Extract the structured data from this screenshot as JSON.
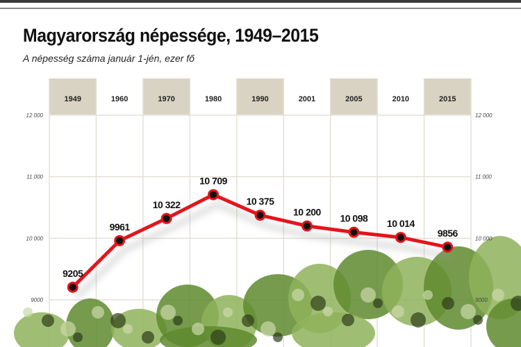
{
  "chart_data": {
    "type": "line",
    "title": "Magyarország népessége, 1949–2015",
    "subtitle": "A népesség száma január 1-jén, ezer fő",
    "categories": [
      "1949",
      "1960",
      "1970",
      "1980",
      "1990",
      "2001",
      "2005",
      "2010",
      "2015"
    ],
    "values": [
      9205,
      9961,
      10322,
      10709,
      10375,
      10200,
      10098,
      10014,
      9856
    ],
    "value_labels": [
      "9205",
      "9961",
      "10 322",
      "10 709",
      "10 375",
      "10 200",
      "10 098",
      "10 014",
      "9856"
    ],
    "yticks": [
      9000,
      10000,
      11000,
      12000
    ],
    "ytick_labels": [
      "9000",
      "10 000",
      "11 000",
      "12 000"
    ],
    "ylim": [
      9000,
      12000
    ],
    "grid": true,
    "colors": {
      "line": "#e3151b",
      "marker": "#111111",
      "header_band": "#d9d3c4",
      "photo_tint": "#6f9a3a"
    }
  }
}
